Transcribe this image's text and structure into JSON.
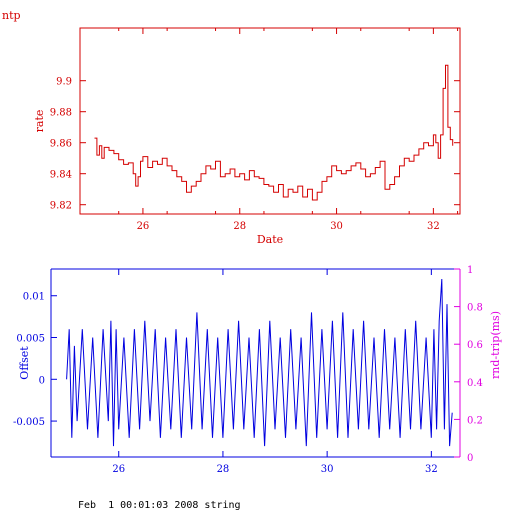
{
  "header": {
    "label": "ntp"
  },
  "footer": {
    "text": "Feb  1 00:01:03 2008 string"
  },
  "colors": {
    "rate": "#d40000",
    "offset": "#0000e0",
    "rndtrip": "#e000e0",
    "text": "#000000"
  },
  "chart_data": [
    {
      "type": "line",
      "title": "",
      "xlabel": "Date",
      "ylabel": "rate",
      "xlim": [
        24.7,
        32.55
      ],
      "ylim": [
        9.814,
        9.934
      ],
      "x_ticks": [
        "26",
        "28",
        "30",
        "32"
      ],
      "y_ticks": [
        "9.82",
        "9.84",
        "9.86",
        "9.88",
        "9.9"
      ],
      "series": [
        {
          "x": [
            25.0,
            25.05,
            25.1,
            25.15,
            25.2,
            25.3,
            25.4,
            25.5,
            25.6,
            25.7,
            25.8,
            25.85,
            25.9,
            25.95,
            26.0,
            26.1,
            26.2,
            26.3,
            26.4,
            26.5,
            26.6,
            26.7,
            26.8,
            26.9,
            27.0,
            27.1,
            27.2,
            27.3,
            27.4,
            27.5,
            27.6,
            27.7,
            27.8,
            27.9,
            28.0,
            28.1,
            28.2,
            28.3,
            28.4,
            28.5,
            28.6,
            28.7,
            28.8,
            28.9,
            29.0,
            29.1,
            29.2,
            29.3,
            29.4,
            29.5,
            29.6,
            29.7,
            29.8,
            29.9,
            30.0,
            30.1,
            30.2,
            30.3,
            30.4,
            30.5,
            30.6,
            30.7,
            30.8,
            30.9,
            31.0,
            31.1,
            31.2,
            31.3,
            31.4,
            31.5,
            31.6,
            31.7,
            31.8,
            31.9,
            32.0,
            32.05,
            32.1,
            32.15,
            32.2,
            32.25,
            32.3,
            32.35,
            32.4
          ],
          "y": [
            9.863,
            9.852,
            9.858,
            9.85,
            9.857,
            9.855,
            9.853,
            9.849,
            9.846,
            9.847,
            9.84,
            9.832,
            9.838,
            9.848,
            9.851,
            9.844,
            9.848,
            9.846,
            9.85,
            9.845,
            9.842,
            9.838,
            9.835,
            9.828,
            9.832,
            9.835,
            9.84,
            9.845,
            9.843,
            9.848,
            9.838,
            9.84,
            9.843,
            9.838,
            9.84,
            9.836,
            9.842,
            9.838,
            9.837,
            9.833,
            9.832,
            9.828,
            9.833,
            9.825,
            9.83,
            9.828,
            9.832,
            9.825,
            9.83,
            9.823,
            9.828,
            9.835,
            9.838,
            9.845,
            9.842,
            9.84,
            9.842,
            9.845,
            9.847,
            9.843,
            9.838,
            9.84,
            9.844,
            9.848,
            9.83,
            9.833,
            9.838,
            9.845,
            9.85,
            9.848,
            9.852,
            9.856,
            9.86,
            9.858,
            9.865,
            9.86,
            9.85,
            9.865,
            9.895,
            9.91,
            9.87,
            9.862,
            9.858
          ]
        }
      ]
    },
    {
      "type": "line",
      "title": "",
      "xlabel": "",
      "ylabel": "Offset",
      "y2label": "rnd-trip(ms)",
      "xlim": [
        24.7,
        32.55
      ],
      "ylim": [
        -0.0093,
        0.0132
      ],
      "y2lim": [
        0,
        1
      ],
      "x_ticks": [
        "26",
        "28",
        "30",
        "32"
      ],
      "y_ticks": [
        "-0.005",
        "0",
        "0.005",
        "0.01"
      ],
      "y2_ticks": [
        "0",
        "0.2",
        "0.4",
        "0.6",
        "0.8",
        "1"
      ],
      "series": [
        {
          "x": [
            25.0,
            25.05,
            25.1,
            25.15,
            25.2,
            25.3,
            25.4,
            25.5,
            25.6,
            25.7,
            25.8,
            25.85,
            25.9,
            25.95,
            26.0,
            26.1,
            26.2,
            26.3,
            26.4,
            26.5,
            26.6,
            26.7,
            26.8,
            26.9,
            27.0,
            27.1,
            27.2,
            27.3,
            27.4,
            27.5,
            27.6,
            27.7,
            27.8,
            27.9,
            28.0,
            28.1,
            28.2,
            28.3,
            28.4,
            28.5,
            28.6,
            28.7,
            28.8,
            28.9,
            29.0,
            29.1,
            29.2,
            29.3,
            29.4,
            29.5,
            29.6,
            29.7,
            29.8,
            29.9,
            30.0,
            30.1,
            30.2,
            30.3,
            30.4,
            30.5,
            30.6,
            30.7,
            30.8,
            30.9,
            31.0,
            31.1,
            31.2,
            31.3,
            31.4,
            31.5,
            31.6,
            31.7,
            31.8,
            31.9,
            32.0,
            32.05,
            32.1,
            32.15,
            32.2,
            32.25,
            32.3,
            32.35,
            32.4
          ],
          "y": [
            0.0,
            0.006,
            -0.007,
            0.004,
            -0.005,
            0.006,
            -0.006,
            0.005,
            -0.007,
            0.006,
            -0.005,
            0.007,
            -0.008,
            0.006,
            -0.006,
            0.005,
            -0.007,
            0.006,
            -0.006,
            0.007,
            -0.005,
            0.006,
            -0.007,
            0.005,
            -0.006,
            0.006,
            -0.007,
            0.005,
            -0.006,
            0.008,
            -0.006,
            0.006,
            -0.007,
            0.005,
            -0.007,
            0.006,
            -0.006,
            0.007,
            -0.006,
            0.005,
            -0.007,
            0.006,
            -0.008,
            0.007,
            -0.006,
            0.005,
            -0.007,
            0.006,
            -0.006,
            0.005,
            -0.008,
            0.008,
            -0.007,
            0.006,
            -0.006,
            0.007,
            -0.007,
            0.008,
            -0.007,
            0.006,
            -0.006,
            0.007,
            -0.006,
            0.005,
            -0.007,
            0.006,
            -0.006,
            0.005,
            -0.007,
            0.006,
            -0.006,
            0.007,
            -0.006,
            0.005,
            -0.007,
            0.006,
            -0.006,
            0.007,
            0.012,
            -0.006,
            0.009,
            -0.008,
            -0.004
          ]
        }
      ]
    }
  ]
}
